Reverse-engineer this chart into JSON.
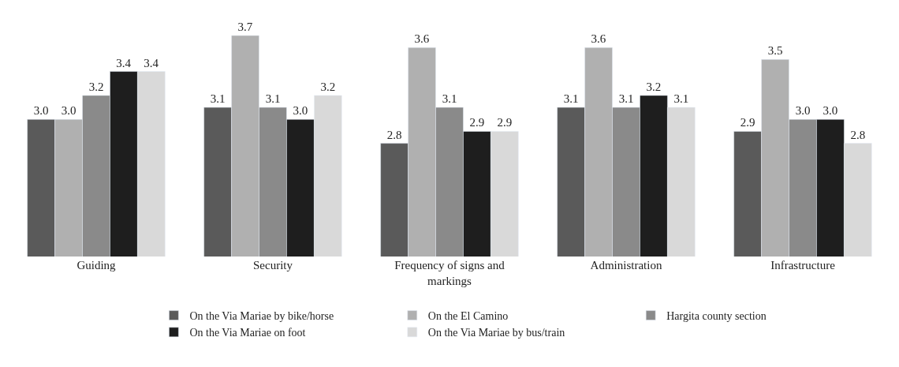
{
  "chart_data": {
    "type": "bar",
    "categories": [
      "Guiding",
      "Security",
      "Frequency of signs and markings",
      "Administration",
      "Infrastructure"
    ],
    "series": [
      {
        "name": "On the Via Mariae by bike/horse",
        "color": "#5a5a5a",
        "values": [
          3.0,
          3.1,
          2.8,
          3.1,
          2.9
        ],
        "value_labels": [
          "3.0",
          "3.1",
          "2.8",
          "3.1",
          "2.9"
        ]
      },
      {
        "name": "On the El Camino",
        "color": "#b0b0b0",
        "values": [
          3.0,
          3.7,
          3.6,
          3.6,
          3.5
        ],
        "value_labels": [
          "3.0",
          "3.7",
          "3.6",
          "3.6",
          "3.5"
        ]
      },
      {
        "name": "Hargita county section",
        "color": "#8a8a8a",
        "values": [
          3.2,
          3.1,
          3.1,
          3.1,
          3.0
        ],
        "value_labels": [
          "3.2",
          "3.1",
          "3.1",
          "3.1",
          "3.0"
        ]
      },
      {
        "name": "On the Via Mariae on foot",
        "color": "#1e1e1e",
        "values": [
          3.4,
          3.0,
          2.9,
          3.2,
          3.0
        ],
        "value_labels": [
          "3.4",
          "3.0",
          "2.9",
          "3.2",
          "3.0"
        ]
      },
      {
        "name": "On the Via Mariae by bus/train",
        "color": "#d9d9d9",
        "values": [
          3.4,
          3.2,
          2.9,
          3.1,
          2.8
        ],
        "value_labels": [
          "3.4",
          "3.2",
          "2.9",
          "3.1",
          "2.8"
        ]
      }
    ],
    "tick_labels": "x",
    "legend": "bottom"
  }
}
